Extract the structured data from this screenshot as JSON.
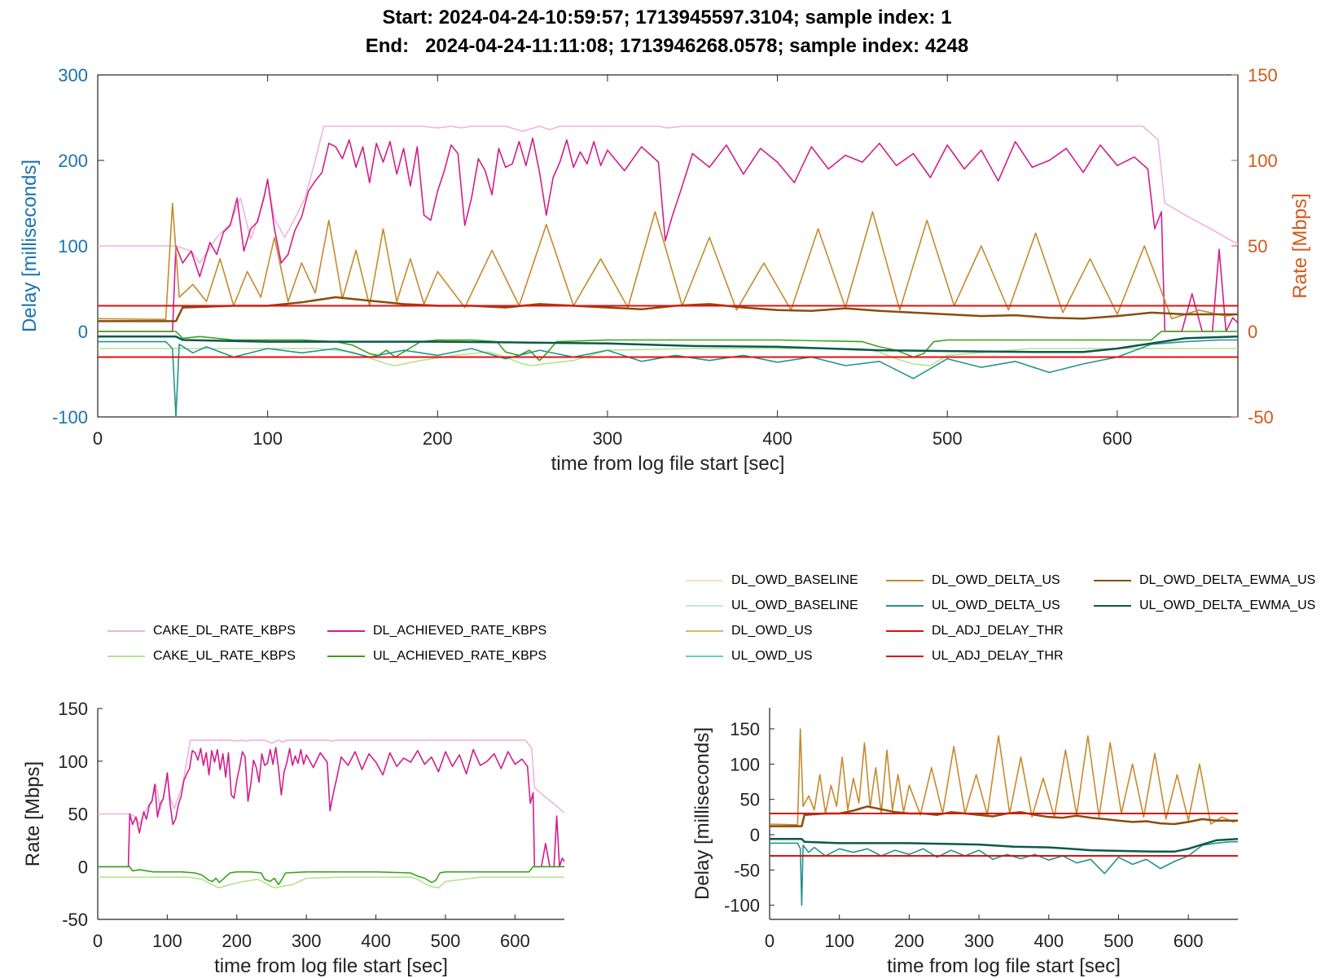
{
  "title_lines": [
    "Start: 2024-04-24-10:59:57; 1713945597.3104; sample index: 1",
    "End:   2024-04-24-11:11:08; 1713946268.0578; sample index: 4248"
  ],
  "colors": {
    "CAKE_DL_RATE_KBPS": "#f0b4dc",
    "DL_ACHIEVED_RATE_KBPS": "#d11e8c",
    "CAKE_UL_RATE_KBPS": "#b6e391",
    "UL_ACHIEVED_RATE_KBPS": "#3aa21a",
    "DL_OWD_BASELINE": "#f4e2bf",
    "UL_OWD_BASELINE": "#bfe9dd",
    "DL_OWD_US": "#dcb565",
    "UL_OWD_US": "#6fcbb8",
    "DL_OWD_DELTA_US": "#c58a2e",
    "UL_OWD_DELTA_US": "#24948a",
    "DL_ADJ_DELAY_THR": "#e01010",
    "UL_ADJ_DELAY_THR": "#e01010",
    "DL_OWD_DELTA_EWMA_US": "#8a4d0c",
    "UL_OWD_DELTA_EWMA_US": "#0c5a4a",
    "delay_axis": "#1a73b0",
    "rate_axis": "#d05a1a"
  },
  "legend_rate": [
    {
      "key": "CAKE_DL_RATE_KBPS",
      "label": "CAKE_DL_RATE_KBPS"
    },
    {
      "key": "DL_ACHIEVED_RATE_KBPS",
      "label": "DL_ACHIEVED_RATE_KBPS"
    },
    {
      "key": "CAKE_UL_RATE_KBPS",
      "label": "CAKE_UL_RATE_KBPS"
    },
    {
      "key": "UL_ACHIEVED_RATE_KBPS",
      "label": "UL_ACHIEVED_RATE_KBPS"
    }
  ],
  "legend_delay": [
    {
      "key": "DL_OWD_BASELINE",
      "label": "DL_OWD_BASELINE"
    },
    {
      "key": "DL_OWD_DELTA_US",
      "label": "DL_OWD_DELTA_US"
    },
    {
      "key": "DL_OWD_DELTA_EWMA_US",
      "label": "DL_OWD_DELTA_EWMA_US"
    },
    {
      "key": "UL_OWD_BASELINE",
      "label": "UL_OWD_BASELINE"
    },
    {
      "key": "UL_OWD_DELTA_US",
      "label": "UL_OWD_DELTA_US"
    },
    {
      "key": "UL_OWD_DELTA_EWMA_US",
      "label": "UL_OWD_DELTA_EWMA_US"
    },
    {
      "key": "DL_OWD_US",
      "label": "DL_OWD_US"
    },
    {
      "key": "DL_ADJ_DELAY_THR",
      "label": "DL_ADJ_DELAY_THR"
    },
    {
      "key": "UL_OWD_US",
      "label": "UL_OWD_US"
    },
    {
      "key": "UL_ADJ_DELAY_THR",
      "label": "UL_ADJ_DELAY_THR"
    }
  ],
  "chart_data": [
    {
      "id": "combined",
      "type": "line",
      "xlabel": "time from log file start [sec]",
      "ylabel_left": "Delay [milliseconds]",
      "ylabel_right": "Rate [Mbps]",
      "xlim": [
        0,
        671
      ],
      "ylim_left": [
        -100,
        300
      ],
      "ylim_right": [
        -50,
        150
      ],
      "xticks": [
        0,
        100,
        200,
        300,
        400,
        500,
        600
      ],
      "yticks_left": [
        -100,
        0,
        100,
        200,
        300
      ],
      "yticks_right": [
        -50,
        0,
        50,
        100,
        150
      ],
      "series": [
        {
          "name": "CAKE_DL_RATE_KBPS",
          "axis": "right",
          "x": [
            0,
            46,
            55,
            60,
            70,
            78,
            84,
            90,
            95,
            100,
            104,
            110,
            116,
            122,
            128,
            133,
            140,
            150,
            170,
            190,
            200,
            208,
            214,
            220,
            230,
            240,
            250,
            260,
            266,
            272,
            280,
            290,
            300,
            330,
            335,
            345,
            360,
            400,
            450,
            500,
            550,
            600,
            615,
            624,
            628,
            640,
            655,
            671
          ],
          "values": [
            50,
            50,
            47,
            40,
            55,
            63,
            78,
            54,
            68,
            88,
            66,
            55,
            66,
            78,
            100,
            120,
            120,
            120,
            120,
            120,
            119,
            120,
            119,
            120,
            120,
            120,
            117,
            120,
            118,
            120,
            120,
            120,
            120,
            120,
            119,
            120,
            120,
            120,
            120,
            120,
            120,
            120,
            120,
            112,
            75,
            68,
            60,
            51
          ]
        },
        {
          "name": "DL_ACHIEVED_RATE_KBPS",
          "axis": "right",
          "x": [
            0,
            44,
            46,
            50,
            55,
            60,
            66,
            70,
            74,
            78,
            82,
            86,
            90,
            94,
            98,
            100,
            104,
            108,
            112,
            116,
            120,
            124,
            128,
            132,
            136,
            140,
            144,
            148,
            152,
            156,
            160,
            164,
            168,
            172,
            176,
            180,
            184,
            188,
            192,
            196,
            200,
            204,
            208,
            212,
            216,
            220,
            224,
            228,
            232,
            236,
            240,
            244,
            248,
            252,
            256,
            260,
            264,
            268,
            272,
            276,
            280,
            284,
            288,
            292,
            296,
            300,
            310,
            320,
            330,
            334,
            338,
            344,
            350,
            360,
            370,
            380,
            390,
            400,
            410,
            420,
            430,
            440,
            450,
            460,
            470,
            480,
            490,
            500,
            510,
            520,
            530,
            540,
            550,
            560,
            570,
            580,
            590,
            600,
            610,
            618,
            622,
            626,
            628,
            632,
            638,
            644,
            650,
            656,
            660,
            664,
            668,
            671
          ],
          "values": [
            0,
            0,
            50,
            40,
            47,
            32,
            52,
            45,
            58,
            62,
            78,
            47,
            60,
            64,
            79,
            89,
            60,
            40,
            45,
            59,
            67,
            82,
            88,
            93,
            110,
            108,
            101,
            112,
            96,
            108,
            87,
            110,
            99,
            111,
            92,
            107,
            85,
            108,
            68,
            65,
            82,
            94,
            109,
            104,
            62,
            78,
            101,
            94,
            80,
            107,
            96,
            98,
            111,
            97,
            113,
            93,
            68,
            90,
            99,
            112,
            96,
            105,
            98,
            111,
            97,
            106,
            94,
            108,
            99,
            53,
            67,
            85,
            104,
            96,
            109,
            92,
            107,
            99,
            87,
            108,
            95,
            103,
            99,
            110,
            97,
            104,
            90,
            109,
            95,
            106,
            88,
            111,
            96,
            100,
            107,
            93,
            109,
            97,
            102,
            95,
            60,
            70,
            0,
            0,
            0,
            22,
            0,
            0,
            48,
            0,
            8,
            5
          ]
        },
        {
          "name": "CAKE_UL_RATE_KBPS",
          "axis": "right",
          "x": [
            0,
            46,
            60,
            100,
            130,
            150,
            170,
            175,
            190,
            210,
            230,
            240,
            250,
            256,
            262,
            280,
            300,
            350,
            400,
            450,
            460,
            470,
            480,
            490,
            500,
            550,
            600,
            620,
            671
          ],
          "values": [
            -10,
            -10,
            -10,
            -10,
            -10,
            -12,
            -19,
            -20,
            -17,
            -14,
            -12,
            -15,
            -19,
            -20,
            -19,
            -17,
            -11,
            -10,
            -10,
            -10,
            -12,
            -16,
            -19,
            -20,
            -14,
            -10,
            -10,
            -10,
            -10
          ]
        },
        {
          "name": "UL_ACHIEVED_RATE_KBPS",
          "axis": "right",
          "x": [
            0,
            46,
            50,
            60,
            80,
            100,
            120,
            140,
            150,
            160,
            165,
            170,
            175,
            180,
            190,
            200,
            220,
            235,
            240,
            248,
            254,
            260,
            264,
            270,
            300,
            350,
            400,
            450,
            460,
            470,
            480,
            486,
            492,
            500,
            550,
            600,
            620,
            626,
            671
          ],
          "values": [
            0,
            0,
            -4,
            -3,
            -5,
            -5,
            -5,
            -6,
            -8,
            -13,
            -14,
            -11,
            -15,
            -12,
            -6,
            -5,
            -5,
            -6,
            -12,
            -14,
            -11,
            -17,
            -13,
            -6,
            -5,
            -5,
            -5,
            -6,
            -9,
            -11,
            -15,
            -13,
            -6,
            -5,
            -5,
            -5,
            -5,
            0,
            0
          ]
        },
        {
          "name": "DL_OWD_DELTA_US",
          "axis": "left",
          "x": [
            0,
            40,
            44,
            48,
            56,
            64,
            72,
            80,
            88,
            96,
            104,
            112,
            120,
            128,
            136,
            144,
            152,
            160,
            168,
            176,
            184,
            192,
            200,
            216,
            232,
            248,
            264,
            280,
            296,
            312,
            328,
            344,
            360,
            376,
            392,
            408,
            424,
            440,
            456,
            472,
            488,
            504,
            520,
            536,
            552,
            568,
            584,
            600,
            616,
            632,
            648,
            664,
            671
          ],
          "values": [
            15,
            14,
            150,
            40,
            55,
            35,
            85,
            30,
            70,
            40,
            110,
            35,
            80,
            45,
            130,
            38,
            95,
            30,
            120,
            35,
            85,
            32,
            70,
            28,
            95,
            30,
            125,
            30,
            85,
            28,
            140,
            30,
            110,
            25,
            80,
            25,
            120,
            28,
            140,
            25,
            130,
            30,
            100,
            25,
            115,
            22,
            85,
            20,
            100,
            15,
            25,
            18,
            20
          ]
        },
        {
          "name": "UL_OWD_DELTA_US",
          "axis": "left",
          "x": [
            0,
            40,
            44,
            46,
            48,
            56,
            64,
            80,
            100,
            120,
            140,
            160,
            180,
            200,
            220,
            240,
            260,
            280,
            300,
            320,
            340,
            360,
            380,
            400,
            420,
            440,
            460,
            480,
            500,
            520,
            540,
            560,
            580,
            600,
            620,
            640,
            660,
            671
          ],
          "values": [
            -12,
            -12,
            -20,
            -100,
            -15,
            -25,
            -18,
            -30,
            -20,
            -25,
            -20,
            -30,
            -22,
            -28,
            -20,
            -32,
            -22,
            -30,
            -22,
            -35,
            -28,
            -34,
            -28,
            -36,
            -30,
            -40,
            -35,
            -55,
            -32,
            -42,
            -35,
            -48,
            -38,
            -30,
            -15,
            -12,
            -10,
            -10
          ]
        },
        {
          "name": "DL_OWD_DELTA_EWMA_US",
          "axis": "left",
          "x": [
            0,
            46,
            50,
            80,
            100,
            120,
            140,
            160,
            180,
            200,
            220,
            240,
            260,
            280,
            300,
            320,
            340,
            360,
            380,
            400,
            420,
            440,
            460,
            480,
            500,
            520,
            540,
            560,
            580,
            600,
            620,
            640,
            671
          ],
          "values": [
            12,
            12,
            28,
            30,
            30,
            34,
            40,
            36,
            32,
            30,
            30,
            28,
            32,
            30,
            28,
            26,
            30,
            32,
            28,
            25,
            24,
            27,
            24,
            22,
            20,
            18,
            19,
            16,
            15,
            18,
            22,
            20,
            20
          ]
        },
        {
          "name": "UL_OWD_DELTA_EWMA_US",
          "axis": "left",
          "x": [
            0,
            46,
            50,
            100,
            150,
            200,
            250,
            300,
            350,
            400,
            430,
            460,
            500,
            550,
            580,
            600,
            620,
            640,
            671
          ],
          "values": [
            -6,
            -6,
            -10,
            -12,
            -12,
            -12,
            -13,
            -14,
            -17,
            -18,
            -20,
            -22,
            -23,
            -24,
            -24,
            -20,
            -14,
            -8,
            -6
          ]
        },
        {
          "name": "DL_ADJ_DELAY_THR",
          "axis": "left",
          "x": [
            0,
            671
          ],
          "values": [
            30,
            30
          ]
        },
        {
          "name": "UL_ADJ_DELAY_THR",
          "axis": "left",
          "x": [
            0,
            671
          ],
          "values": [
            -30,
            -30
          ]
        }
      ]
    },
    {
      "id": "rate",
      "type": "line",
      "xlabel": "time from log file start [sec]",
      "ylabel": "Rate [Mbps]",
      "xlim": [
        0,
        671
      ],
      "ylim": [
        -50,
        150
      ],
      "xticks": [
        0,
        100,
        200,
        300,
        400,
        500,
        600
      ],
      "yticks": [
        -50,
        0,
        50,
        100,
        150
      ],
      "series": [
        {
          "name": "CAKE_DL_RATE_KBPS",
          "same_as": "combined"
        },
        {
          "name": "DL_ACHIEVED_RATE_KBPS",
          "same_as": "combined"
        },
        {
          "name": "CAKE_UL_RATE_KBPS",
          "same_as": "combined"
        },
        {
          "name": "UL_ACHIEVED_RATE_KBPS",
          "same_as": "combined"
        }
      ]
    },
    {
      "id": "delay",
      "type": "line",
      "xlabel": "time from log file start [sec]",
      "ylabel": "Delay [milliseconds]",
      "xlim": [
        0,
        671
      ],
      "ylim": [
        -120,
        180
      ],
      "xticks": [
        0,
        100,
        200,
        300,
        400,
        500,
        600
      ],
      "yticks": [
        -100,
        -50,
        0,
        50,
        100,
        150
      ],
      "series": [
        {
          "name": "DL_OWD_DELTA_US",
          "same_as": "combined"
        },
        {
          "name": "UL_OWD_DELTA_US",
          "same_as": "combined"
        },
        {
          "name": "DL_OWD_DELTA_EWMA_US",
          "same_as": "combined"
        },
        {
          "name": "UL_OWD_DELTA_EWMA_US",
          "same_as": "combined"
        },
        {
          "name": "DL_ADJ_DELAY_THR",
          "same_as": "combined"
        },
        {
          "name": "UL_ADJ_DELAY_THR",
          "same_as": "combined"
        }
      ]
    }
  ]
}
